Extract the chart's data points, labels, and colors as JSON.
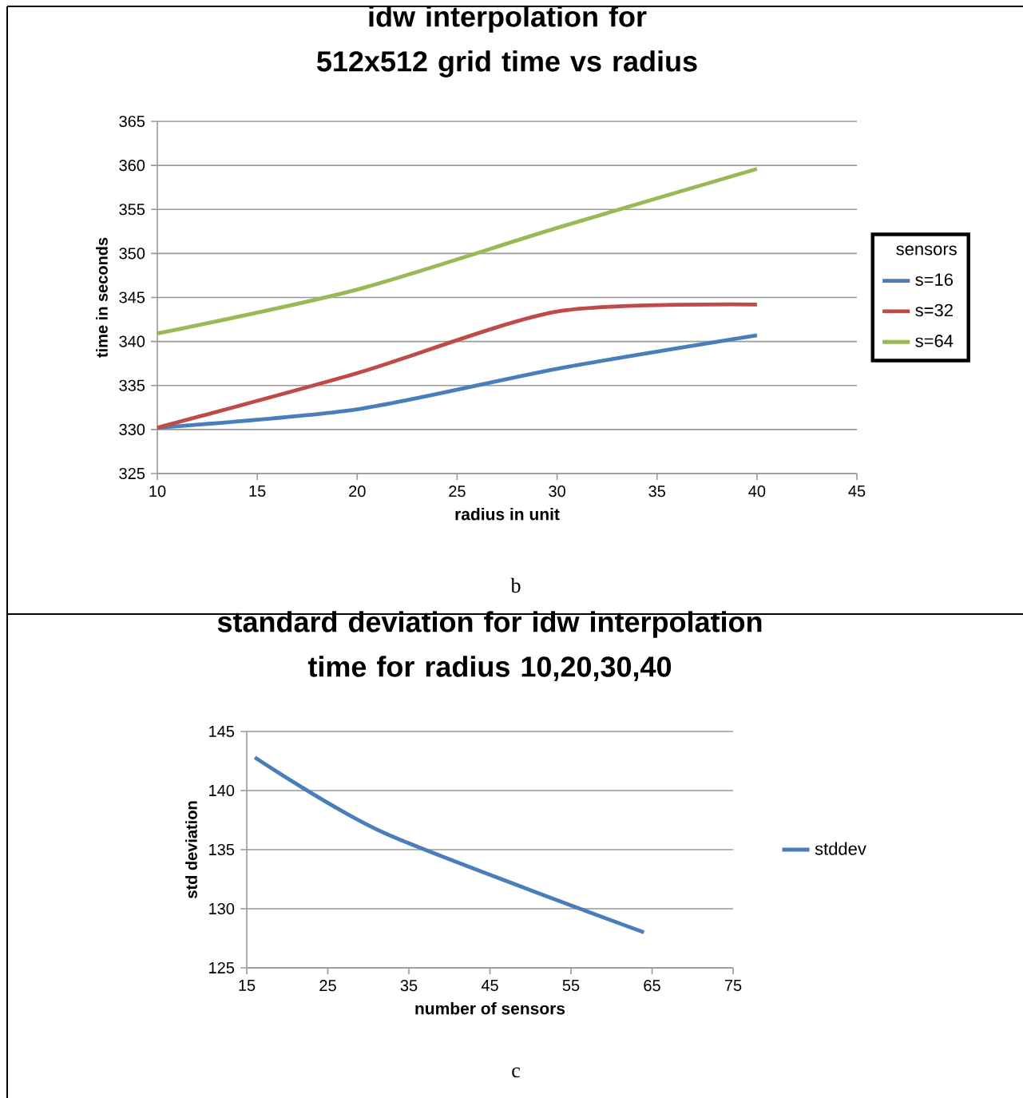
{
  "chart_data": [
    {
      "type": "line",
      "title": "idw interpolation for 512x512 grid time vs radius",
      "xlabel": "radius in unit",
      "ylabel": "time in seconds",
      "legend_title": "sensors",
      "annotations": [
        "b"
      ],
      "x": [
        10,
        20,
        30,
        40
      ],
      "series": [
        {
          "name": "s=16",
          "color": "#4a7ebb",
          "values": [
            330.2,
            332.3,
            336.9,
            340.7
          ]
        },
        {
          "name": "s=32",
          "color": "#be4b48",
          "values": [
            330.2,
            336.4,
            343.4,
            344.2
          ]
        },
        {
          "name": "s=64",
          "color": "#98b954",
          "values": [
            340.9,
            345.9,
            352.9,
            359.6
          ]
        }
      ],
      "xlim": [
        10,
        45
      ],
      "xticks": [
        10,
        15,
        20,
        25,
        30,
        35,
        40,
        45
      ],
      "ylim": [
        325,
        365
      ],
      "yticks": [
        325,
        330,
        335,
        340,
        345,
        350,
        355,
        360,
        365
      ],
      "grid": "y",
      "legend": "right"
    },
    {
      "type": "line",
      "title": "standard deviation for idw interpolation time for radius 10,20,30,40",
      "xlabel": "number of sensors",
      "ylabel": "std deviation",
      "annotations": [
        "c"
      ],
      "x": [
        16,
        32,
        64
      ],
      "series": [
        {
          "name": "stddev",
          "color": "#4a7ebb",
          "values": [
            142.8,
            136.4,
            128.0
          ]
        }
      ],
      "xlim": [
        15,
        75
      ],
      "xticks": [
        15,
        25,
        35,
        45,
        55,
        65,
        75
      ],
      "ylim": [
        125,
        145
      ],
      "yticks": [
        125,
        130,
        135,
        140,
        145
      ],
      "grid": "y",
      "legend": "right"
    }
  ]
}
